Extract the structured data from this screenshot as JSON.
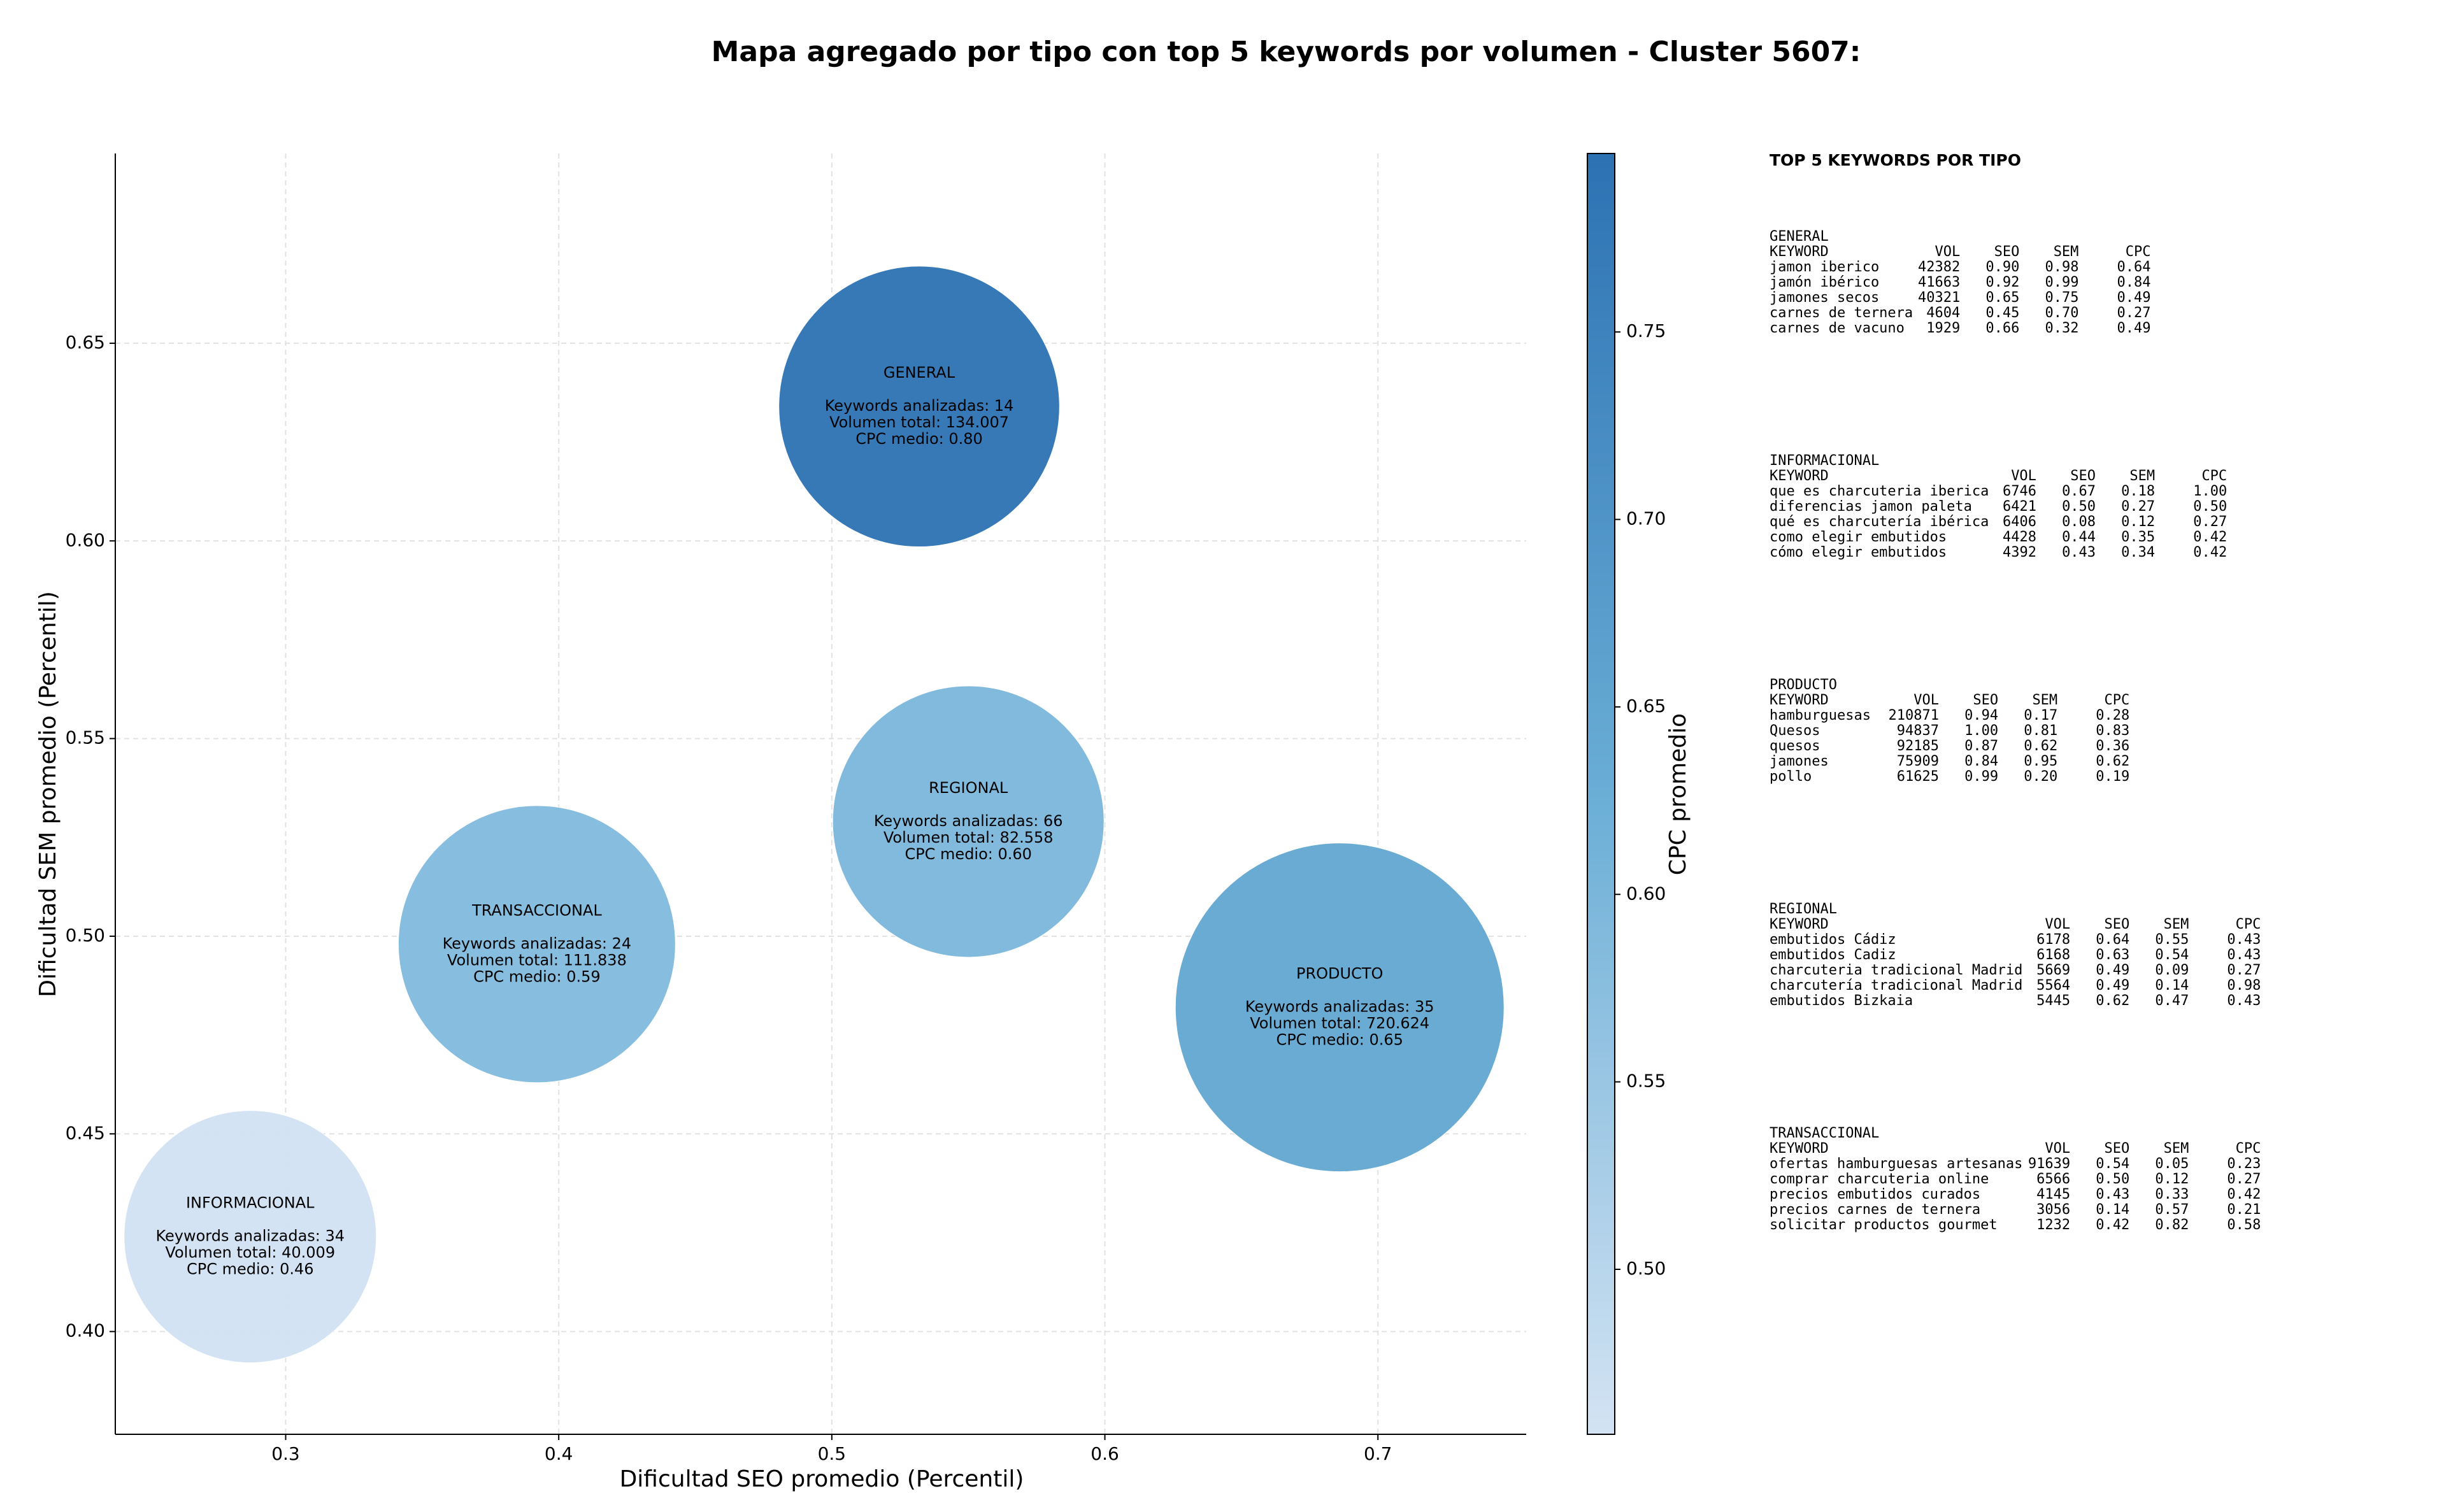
{
  "chart_data": {
    "type": "bubble",
    "title": "Mapa agregado por tipo con top 5 keywords por volumen - Cluster 5607:",
    "x_label": "Dificultad SEO promedio (Percentil)",
    "y_label": "Dificultad SEM promedio (Percentil)",
    "colorbar_label": "CPC promedio",
    "categories": [
      "GENERAL",
      "INFORMACIONAL",
      "PRODUCTO",
      "REGIONAL",
      "TRANSACCIONAL"
    ],
    "x": [
      0.532,
      0.287,
      0.686,
      0.55,
      0.392
    ],
    "values": [
      0.634,
      0.424,
      0.482,
      0.529,
      0.498
    ],
    "volumes": [
      134007,
      40009,
      720624,
      82558,
      111838
    ],
    "cpc": [
      0.8,
      0.46,
      0.65,
      0.6,
      0.59
    ],
    "annotations": [
      [
        "Keywords analizadas: 14",
        "Volumen total: 134.007",
        "CPC medio: 0.80"
      ],
      [
        "Keywords analizadas: 34",
        "Volumen total: 40.009",
        "CPC medio: 0.46"
      ],
      [
        "Keywords analizadas: 35",
        "Volumen total: 720.624",
        "CPC medio: 0.65"
      ],
      [
        "Keywords analizadas: 66",
        "Volumen total: 82.558",
        "CPC medio: 0.60"
      ],
      [
        "Keywords analizadas: 24",
        "Volumen total: 111.838",
        "CPC medio: 0.59"
      ]
    ],
    "xlim": [
      0.2376,
      0.7543
    ],
    "ylim": [
      0.374,
      0.698
    ],
    "xticks": [
      0.3,
      0.4,
      0.5,
      0.6,
      0.7
    ],
    "yticks": [
      {
        "value": 0.4,
        "label": "0.40"
      },
      0.45,
      {
        "value": 0.5,
        "label": "0.50"
      },
      0.55,
      {
        "value": 0.6,
        "label": "0.60"
      },
      0.65
    ],
    "grid": true,
    "clim": [
      0.456,
      0.7976
    ],
    "cticks": [
      {
        "value": 0.5,
        "label": "0.50"
      },
      0.55,
      {
        "value": 0.6,
        "label": "0.60"
      },
      0.65,
      {
        "value": 0.7,
        "label": "0.70"
      },
      0.75
    ],
    "colormap": [
      "#d3e3f3",
      "#6aaed6",
      "#2c72b3"
    ]
  },
  "side_panel": {
    "title": "TOP 5 KEYWORDS POR TIPO",
    "header": [
      "KEYWORD",
      "VOL",
      "SEO",
      "SEM",
      "CPC"
    ],
    "groups": [
      {
        "name": "GENERAL",
        "rows": [
          [
            "jamon iberico",
            "42382",
            "0.90",
            "0.98",
            "0.64"
          ],
          [
            "jamón ibérico",
            "41663",
            "0.92",
            "0.99",
            "0.84"
          ],
          [
            "jamones secos",
            "40321",
            "0.65",
            "0.75",
            "0.49"
          ],
          [
            "carnes de ternera",
            "4604",
            "0.45",
            "0.70",
            "0.27"
          ],
          [
            "carnes de vacuno",
            "1929",
            "0.66",
            "0.32",
            "0.49"
          ]
        ]
      },
      {
        "name": "INFORMACIONAL",
        "rows": [
          [
            "que es charcuteria iberica",
            "6746",
            "0.67",
            "0.18",
            "1.00"
          ],
          [
            "diferencias jamon paleta",
            "6421",
            "0.50",
            "0.27",
            "0.50"
          ],
          [
            "qué es charcutería ibérica",
            "6406",
            "0.08",
            "0.12",
            "0.27"
          ],
          [
            "como elegir embutidos",
            "4428",
            "0.44",
            "0.35",
            "0.42"
          ],
          [
            "cómo elegir embutidos",
            "4392",
            "0.43",
            "0.34",
            "0.42"
          ]
        ]
      },
      {
        "name": "PRODUCTO",
        "rows": [
          [
            "hamburguesas",
            "210871",
            "0.94",
            "0.17",
            "0.28"
          ],
          [
            "Quesos",
            "94837",
            "1.00",
            "0.81",
            "0.83"
          ],
          [
            "quesos",
            "92185",
            "0.87",
            "0.62",
            "0.36"
          ],
          [
            "jamones",
            "75909",
            "0.84",
            "0.95",
            "0.62"
          ],
          [
            "pollo",
            "61625",
            "0.99",
            "0.20",
            "0.19"
          ]
        ]
      },
      {
        "name": "REGIONAL",
        "rows": [
          [
            "embutidos Cádiz",
            "6178",
            "0.64",
            "0.55",
            "0.43"
          ],
          [
            "embutidos Cadiz",
            "6168",
            "0.63",
            "0.54",
            "0.43"
          ],
          [
            "charcuteria tradicional Madrid",
            "5669",
            "0.49",
            "0.09",
            "0.27"
          ],
          [
            "charcutería tradicional Madrid",
            "5564",
            "0.49",
            "0.14",
            "0.98"
          ],
          [
            "embutidos Bizkaia",
            "5445",
            "0.62",
            "0.47",
            "0.43"
          ]
        ]
      },
      {
        "name": "TRANSACCIONAL",
        "rows": [
          [
            "ofertas hamburguesas artesanas",
            "91639",
            "0.54",
            "0.05",
            "0.23"
          ],
          [
            "comprar charcuteria online",
            "6566",
            "0.50",
            "0.12",
            "0.27"
          ],
          [
            "precios embutidos curados",
            "4145",
            "0.43",
            "0.33",
            "0.42"
          ],
          [
            "precios carnes de ternera",
            "3056",
            "0.14",
            "0.57",
            "0.21"
          ],
          [
            "solicitar productos gourmet",
            "1232",
            "0.42",
            "0.82",
            "0.58"
          ]
        ]
      }
    ]
  }
}
